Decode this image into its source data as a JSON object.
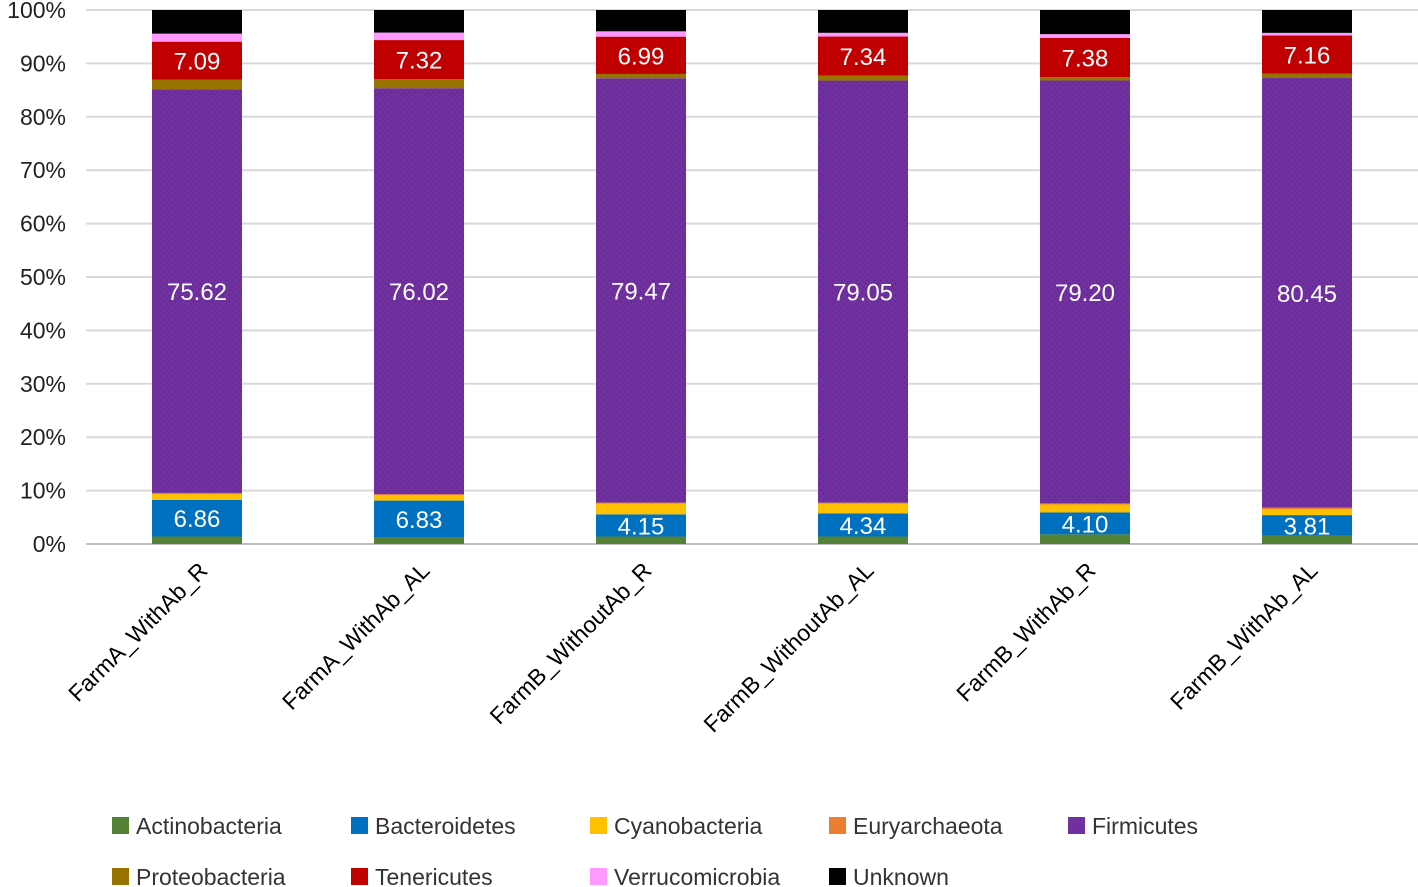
{
  "chart_data": {
    "type": "bar",
    "stacked": true,
    "percent_stacked": true,
    "categories": [
      "FarmA_WithAb_R",
      "FarmA_WithAb_AL",
      "FarmB_WithoutAb_R",
      "FarmB_WithoutAb_AL",
      "FarmB_WithAb_R",
      "FarmB_WithAb_AL"
    ],
    "ylim": [
      0,
      100
    ],
    "yticks": [
      "0%",
      "10%",
      "20%",
      "30%",
      "40%",
      "50%",
      "60%",
      "70%",
      "80%",
      "90%",
      "100%"
    ],
    "grid": true,
    "legend_position": "bottom",
    "series": [
      {
        "name": "Actinobacteria",
        "color": "#538135",
        "values": [
          1.4,
          1.3,
          1.4,
          1.4,
          1.8,
          1.6
        ],
        "labels": [
          "",
          "",
          "",
          "",
          "",
          ""
        ]
      },
      {
        "name": "Bacteroidetes",
        "color": "#0070C0",
        "values": [
          6.86,
          6.83,
          4.15,
          4.34,
          4.1,
          3.81
        ],
        "labels": [
          "6.86",
          "6.83",
          "4.15",
          "4.34",
          "4.10",
          "3.81"
        ]
      },
      {
        "name": "Cyanobacteria",
        "color": "#FFC000",
        "values": [
          1.1,
          1.0,
          2.0,
          1.8,
          1.5,
          1.1
        ],
        "labels": [
          "",
          "",
          "",
          "",
          "",
          ""
        ]
      },
      {
        "name": "Euryarchaeota",
        "color": "#ED7D31",
        "values": [
          0.2,
          0.2,
          0.2,
          0.2,
          0.2,
          0.3
        ],
        "labels": [
          "",
          "",
          "",
          "",
          "",
          ""
        ]
      },
      {
        "name": "Firmicutes",
        "color": "#7030A0",
        "values": [
          75.62,
          76.02,
          79.47,
          79.05,
          79.2,
          80.45
        ],
        "labels": [
          "75.62",
          "76.02",
          "79.47",
          "79.05",
          "79.20",
          "80.45"
        ]
      },
      {
        "name": "Proteobacteria",
        "color": "#997300",
        "values": [
          1.8,
          1.7,
          0.8,
          0.9,
          0.6,
          0.8
        ],
        "labels": [
          "",
          "",
          "",
          "",
          "",
          ""
        ]
      },
      {
        "name": "Tenericutes",
        "color": "#C00000",
        "values": [
          7.09,
          7.32,
          6.99,
          7.34,
          7.38,
          7.16
        ],
        "labels": [
          "7.09",
          "7.32",
          "6.99",
          "7.34",
          "7.38",
          "7.16"
        ]
      },
      {
        "name": "Verrucomicrobia",
        "color": "#FF99FF",
        "values": [
          1.5,
          1.4,
          1.0,
          0.7,
          0.7,
          0.5
        ],
        "labels": [
          "",
          "",
          "",
          "",
          "",
          ""
        ]
      },
      {
        "name": "Unknown",
        "color": "#000000",
        "values": [
          4.43,
          4.23,
          3.99,
          4.27,
          4.52,
          4.28
        ],
        "labels": [
          "",
          "",
          "",
          "",
          "",
          ""
        ]
      }
    ]
  }
}
